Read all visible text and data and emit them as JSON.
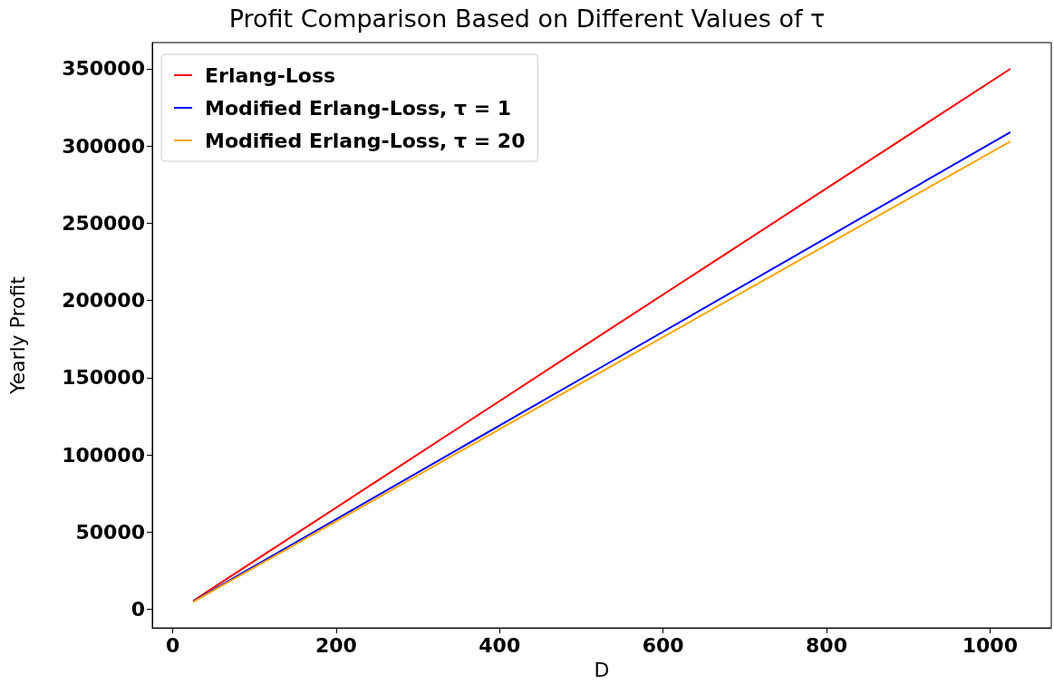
{
  "chart_data": {
    "type": "line",
    "title": "Profit Comparison Based on Different Values of τ",
    "xlabel": "D",
    "ylabel": "Yearly Profit",
    "series": [
      {
        "name": "Erlang-Loss",
        "color": "#ff0000",
        "x": [
          25,
          100,
          525,
          1025
        ],
        "values": [
          5500,
          31400,
          178000,
          350000
        ]
      },
      {
        "name": "Modified Erlang-Loss, τ = 1",
        "color": "#0000ff",
        "x": [
          25,
          100,
          525,
          1025
        ],
        "values": [
          5200,
          28000,
          157000,
          309000
        ]
      },
      {
        "name": "Modified Erlang-Loss, τ = 20",
        "color": "#ffa500",
        "x": [
          25,
          100,
          525,
          1025
        ],
        "values": [
          4900,
          27200,
          154000,
          303000
        ]
      }
    ],
    "xlim": [
      -25,
      1075
    ],
    "xticks": [
      0,
      200,
      400,
      600,
      800,
      1000
    ],
    "ylim": [
      -12000,
      367000
    ],
    "yticks": [
      0,
      50000,
      100000,
      150000,
      200000,
      250000,
      300000,
      350000
    ],
    "grid": false,
    "legend": "top left",
    "marker": "none",
    "line_style": "solid"
  }
}
